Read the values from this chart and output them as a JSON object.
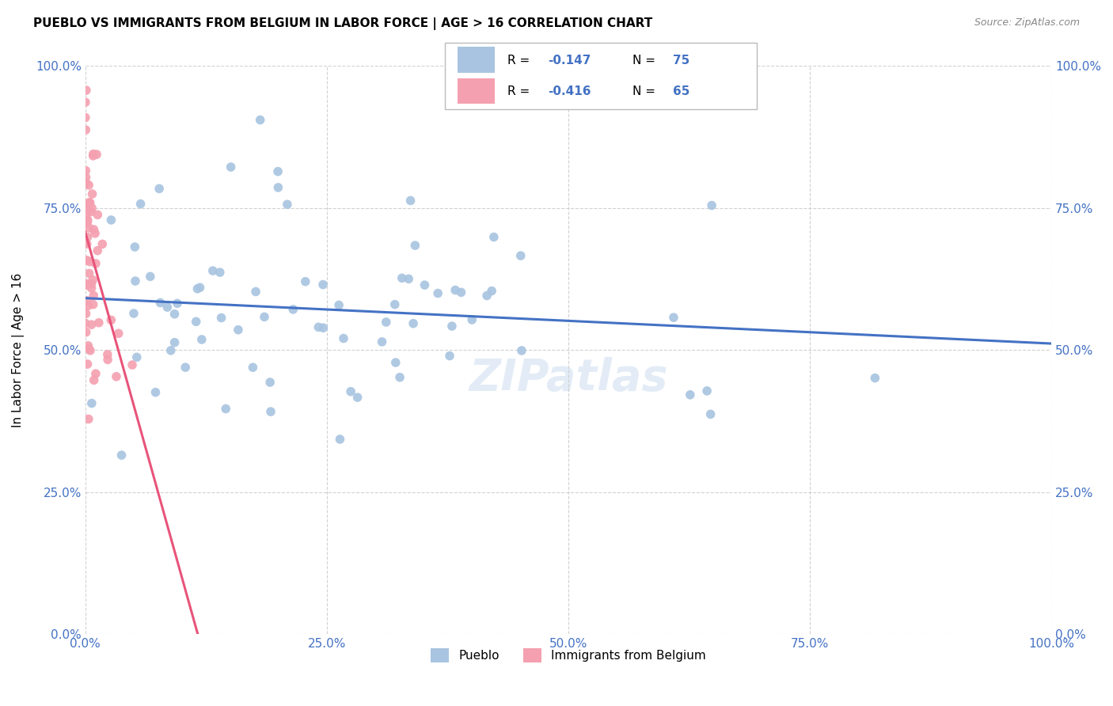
{
  "title": "PUEBLO VS IMMIGRANTS FROM BELGIUM IN LABOR FORCE | AGE > 16 CORRELATION CHART",
  "source": "Source: ZipAtlas.com",
  "ylabel": "In Labor Force | Age > 16",
  "legend_r_pueblo": "-0.147",
  "legend_n_pueblo": "75",
  "legend_r_belgium": "-0.416",
  "legend_n_belgium": "65",
  "color_pueblo": "#a8c4e0",
  "color_belgium": "#f4a0b0",
  "trendline_pueblo_color": "#4472c4",
  "trendline_belgium_color": "#e8547a",
  "trendline_belgium_ext_color": "#c0c0c0",
  "background_color": "#ffffff",
  "grid_color": "#cccccc",
  "axis_color": "#4472c4",
  "ytick_labels": [
    "0.0%",
    "25.0%",
    "50.0%",
    "75.0%",
    "100.0%"
  ],
  "ytick_values": [
    0.0,
    0.25,
    0.5,
    0.75,
    1.0
  ],
  "xtick_labels": [
    "0.0%",
    "25.0%",
    "50.0%",
    "75.0%",
    "100.0%"
  ],
  "xtick_values": [
    0.0,
    0.25,
    0.5,
    0.75,
    1.0
  ],
  "marker_size": 70
}
